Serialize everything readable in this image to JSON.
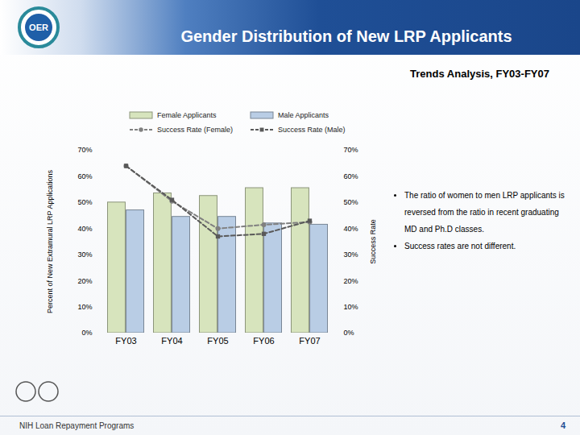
{
  "chart_data": {
    "type": "bar",
    "logo_text": "OER",
    "title": "Gender Distribution of New LRP Applicants",
    "subtitle": "Trends Analysis, FY03-FY07",
    "y_label": "Percent of New Extramural LRP Applications",
    "y2_label": "Success Rate",
    "categories": [
      "FY03",
      "FY04",
      "FY05",
      "FY06",
      "FY07"
    ],
    "series": [
      {
        "name": "Female Applicants",
        "type": "bar",
        "color": "#d7e4bd",
        "values": [
          50,
          53.5,
          52.5,
          55.5,
          55.5
        ]
      },
      {
        "name": "Male Applicants",
        "type": "bar",
        "color": "#b9cde5",
        "values": [
          47,
          44.5,
          44.5,
          42,
          41.5
        ]
      },
      {
        "name": "Success Rate (Female)",
        "type": "line",
        "axis": "y2",
        "color": "#808080",
        "marker": "circle",
        "line_style": "dashed",
        "values": [
          64,
          50.5,
          40,
          41.5,
          42.5
        ]
      },
      {
        "name": "Success Rate (Male)",
        "type": "line",
        "axis": "y2",
        "color": "#595959",
        "marker": "square",
        "line_style": "dashed",
        "values": [
          64,
          51,
          37,
          38,
          43
        ]
      }
    ],
    "ylim": [
      0,
      70
    ],
    "yticks": [
      {
        "value": 0,
        "label": "0%"
      },
      {
        "value": 10,
        "label": "10%"
      },
      {
        "value": 20,
        "label": "20%"
      },
      {
        "value": 30,
        "label": "30%"
      },
      {
        "value": 40,
        "label": "40%"
      },
      {
        "value": 50,
        "label": "50%"
      },
      {
        "value": 60,
        "label": "60%"
      },
      {
        "value": 70,
        "label": "70%"
      }
    ],
    "y2lim": [
      0,
      70
    ],
    "y2ticks": [
      {
        "value": 0,
        "label": "0%"
      },
      {
        "value": 10,
        "label": "10%"
      },
      {
        "value": 20,
        "label": "20%"
      },
      {
        "value": 30,
        "label": "30%"
      },
      {
        "value": 40,
        "label": "40%"
      },
      {
        "value": 50,
        "label": "50%"
      },
      {
        "value": 60,
        "label": "60%"
      },
      {
        "value": 70,
        "label": "70%"
      }
    ],
    "grid": false,
    "legend": "top",
    "annotations": [
      "The ratio of women to men LRP applicants is reversed from the ratio in recent graduating MD and Ph.D classes.",
      "Success rates are not different."
    ],
    "footer": "NIH Loan Repayment Programs",
    "page_number": "4"
  }
}
